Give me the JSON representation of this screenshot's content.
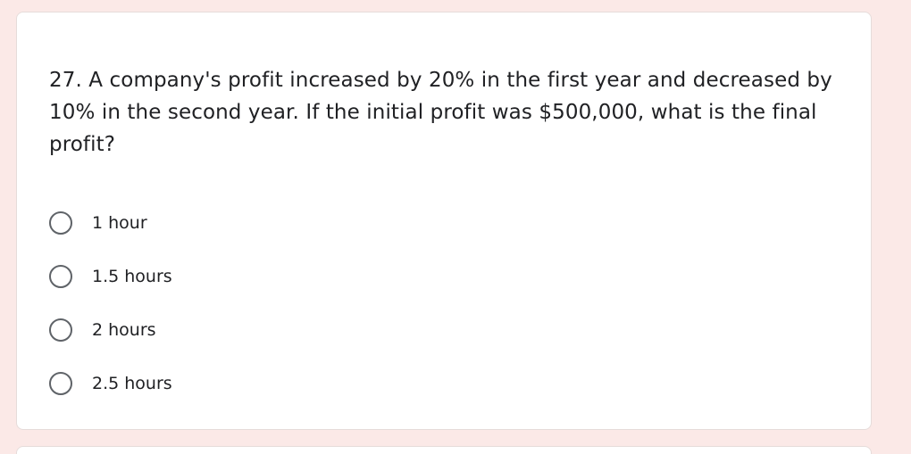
{
  "question": {
    "text": "27. A company's profit increased by 20% in the first year and decreased by 10% in the second year. If the initial profit was $500,000, what is the final profit?"
  },
  "options": [
    {
      "label": "1 hour"
    },
    {
      "label": "1.5 hours"
    },
    {
      "label": "2 hours"
    },
    {
      "label": "2.5 hours"
    }
  ],
  "colors": {
    "background": "#fbe9e7",
    "card": "#ffffff",
    "text": "#202124",
    "radio_border": "#5f6368"
  }
}
